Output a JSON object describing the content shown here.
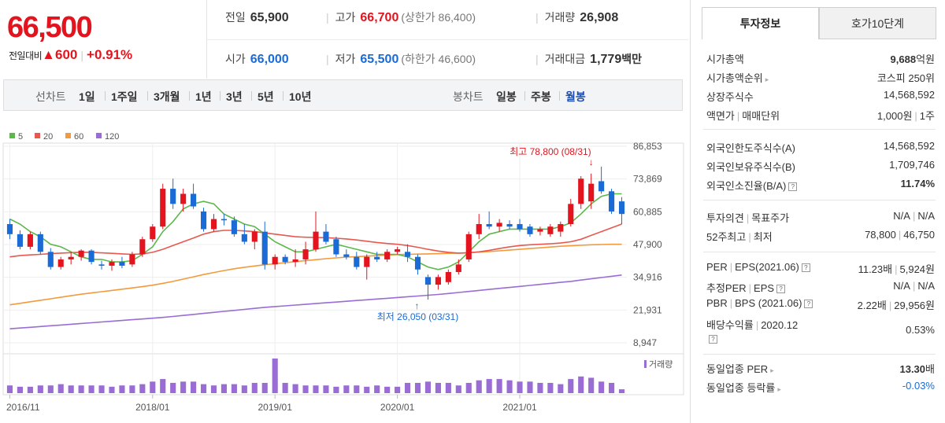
{
  "header": {
    "price": "66,500",
    "change_label": "전일대비",
    "change_arrow": "▲",
    "change_value": "600",
    "change_pct": "+0.91%",
    "stats": {
      "prev_close_label": "전일",
      "prev_close": "65,900",
      "high_label": "고가",
      "high": "66,700",
      "upper_limit": "(상한가 86,400)",
      "volume_label": "거래량",
      "volume": "26,908",
      "open_label": "시가",
      "open": "66,000",
      "low_label": "저가",
      "low": "65,500",
      "lower_limit": "(하한가 46,600)",
      "amount_label": "거래대금",
      "amount": "1,779",
      "amount_unit": "백만"
    }
  },
  "toolbar": {
    "line_chart": "선차트",
    "periods": [
      "1일",
      "1주일",
      "3개월",
      "1년",
      "3년",
      "5년",
      "10년"
    ],
    "candle_chart": "봉차트",
    "candle_periods": [
      "일봉",
      "주봉",
      "월봉"
    ],
    "active_candle": "월봉"
  },
  "colors": {
    "up": "#e4141e",
    "down": "#1a6bd6",
    "ma5": "#5cb84a",
    "ma20": "#e8584f",
    "ma60": "#f39a3c",
    "ma120": "#9a6dd4",
    "volume": "#9a6dd4"
  },
  "chart_data": {
    "type": "candlestick",
    "legend": [
      {
        "name": "5",
        "color": "#5cb84a"
      },
      {
        "name": "20",
        "color": "#e8584f"
      },
      {
        "name": "60",
        "color": "#f39a3c"
      },
      {
        "name": "120",
        "color": "#9a6dd4"
      }
    ],
    "y_ticks": [
      "86,853",
      "73,869",
      "60,885",
      "47,900",
      "34,916",
      "21,931",
      "8,947"
    ],
    "y_tick_values": [
      86853,
      73869,
      60885,
      47900,
      34916,
      21931,
      8947
    ],
    "x_ticks": [
      "2016/11",
      "2018/01",
      "2019/01",
      "2020/01",
      "2021/01"
    ],
    "x_tick_index": [
      0,
      14,
      26,
      38,
      50
    ],
    "volume_label": "거래량",
    "annotations": {
      "high": {
        "text": "최고 78,800 (08/31)",
        "index": 57,
        "value": 78800
      },
      "low": {
        "text": "최저 26,050 (03/31)",
        "index": 40,
        "value": 26050
      }
    },
    "candles": [
      [
        56000,
        58000,
        50000,
        52000
      ],
      [
        52000,
        53500,
        46000,
        47000
      ],
      [
        47000,
        53000,
        46000,
        52000
      ],
      [
        52000,
        53000,
        44000,
        45000
      ],
      [
        45000,
        46500,
        38000,
        39000
      ],
      [
        39000,
        43000,
        38000,
        42000
      ],
      [
        42000,
        45000,
        40000,
        43000
      ],
      [
        43000,
        46000,
        41500,
        45500
      ],
      [
        45500,
        46000,
        40000,
        41000
      ],
      [
        40000,
        41500,
        38000,
        39500
      ],
      [
        39500,
        42000,
        37500,
        41000
      ],
      [
        41000,
        43000,
        38500,
        39500
      ],
      [
        40000,
        45000,
        39000,
        44000
      ],
      [
        44000,
        51000,
        43000,
        50000
      ],
      [
        50000,
        56000,
        49000,
        55000
      ],
      [
        55000,
        72000,
        54000,
        70000
      ],
      [
        70000,
        74000,
        62000,
        64000
      ],
      [
        64000,
        70000,
        61000,
        68000
      ],
      [
        68000,
        72000,
        62000,
        63000
      ],
      [
        61000,
        62500,
        53000,
        54000
      ],
      [
        54000,
        60000,
        53000,
        58000
      ],
      [
        58000,
        60000,
        55500,
        57500
      ],
      [
        57500,
        59000,
        51000,
        52000
      ],
      [
        52000,
        56000,
        48000,
        49000
      ],
      [
        49000,
        54000,
        46000,
        53000
      ],
      [
        53000,
        57000,
        38000,
        40000
      ],
      [
        40000,
        44000,
        38000,
        43000
      ],
      [
        43000,
        44000,
        40000,
        41000
      ],
      [
        41000,
        46000,
        39000,
        42000
      ],
      [
        42000,
        49000,
        40000,
        46000
      ],
      [
        46000,
        61000,
        45000,
        53000
      ],
      [
        53000,
        56000,
        48000,
        49000
      ],
      [
        50000,
        51000,
        43000,
        44000
      ],
      [
        44000,
        46000,
        42000,
        43000
      ],
      [
        43000,
        45000,
        38000,
        39000
      ],
      [
        39000,
        44000,
        34000,
        43000
      ],
      [
        43000,
        45000,
        41000,
        42000
      ],
      [
        42000,
        46000,
        41000,
        45000
      ],
      [
        45000,
        47000,
        44000,
        46000
      ],
      [
        45000,
        48000,
        41000,
        43000
      ],
      [
        43000,
        44000,
        36000,
        38000
      ],
      [
        35000,
        36000,
        26050,
        32000
      ],
      [
        32000,
        36000,
        30000,
        35000
      ],
      [
        33000,
        38000,
        32000,
        37000
      ],
      [
        37000,
        42000,
        36000,
        40000
      ],
      [
        42000,
        53000,
        41000,
        52000
      ],
      [
        52000,
        60000,
        50000,
        56000
      ],
      [
        56000,
        61000,
        54000,
        55000
      ],
      [
        55000,
        58000,
        53000,
        56500
      ],
      [
        56000,
        57500,
        54000,
        55000
      ],
      [
        56000,
        58000,
        53000,
        54000
      ],
      [
        55000,
        56000,
        51000,
        52000
      ],
      [
        53000,
        55000,
        51500,
        54000
      ],
      [
        52000,
        56000,
        51000,
        55000
      ],
      [
        53000,
        57000,
        51000,
        56000
      ],
      [
        56000,
        66000,
        55000,
        64000
      ],
      [
        64000,
        75000,
        62000,
        74000
      ],
      [
        65000,
        76000,
        62000,
        72000
      ],
      [
        73000,
        78800,
        68000,
        69000
      ],
      [
        69000,
        70000,
        60000,
        61000
      ],
      [
        65000,
        66700,
        56000,
        60000
      ]
    ],
    "ma5": [
      58000,
      56000,
      53000,
      51000,
      48000,
      47000,
      45000,
      43000,
      42000,
      42000,
      41000,
      41000,
      41500,
      44000,
      47000,
      53000,
      57000,
      62000,
      64000,
      65000,
      64000,
      60000,
      58000,
      56000,
      55000,
      52000,
      49000,
      47000,
      45000,
      45000,
      46000,
      47000,
      48000,
      47000,
      46000,
      45000,
      44000,
      44000,
      44000,
      43000,
      41000,
      39000,
      38000,
      39000,
      41000,
      45000,
      49000,
      52000,
      53000,
      54000,
      54000,
      54000,
      54000,
      54000,
      55000,
      56500,
      60000,
      64000,
      67000,
      68000,
      68000
    ],
    "ma20": [
      43000,
      43500,
      43800,
      44000,
      44300,
      44500,
      44700,
      44800,
      44800,
      44600,
      44400,
      44200,
      44000,
      44200,
      44800,
      46000,
      47500,
      49000,
      50500,
      52000,
      53000,
      53500,
      53500,
      53300,
      53000,
      52500,
      52000,
      51500,
      51000,
      50800,
      50700,
      50600,
      50400,
      50100,
      49700,
      49200,
      48700,
      48300,
      48000,
      47500,
      46800,
      46000,
      45300,
      44800,
      44500,
      44600,
      45000,
      45600,
      46300,
      47000,
      47500,
      47800,
      48000,
      48200,
      48500,
      49000,
      50000,
      51500,
      53000,
      54500,
      56000
    ],
    "ma60": [
      24000,
      24600,
      25200,
      25800,
      26400,
      27000,
      27600,
      28200,
      28700,
      29200,
      29700,
      30200,
      30700,
      31200,
      31800,
      32500,
      33300,
      34200,
      35100,
      36000,
      36800,
      37600,
      38300,
      38900,
      39400,
      39900,
      40300,
      40700,
      41100,
      41500,
      41900,
      42300,
      42600,
      42900,
      43100,
      43300,
      43500,
      43700,
      43900,
      44000,
      44100,
      44200,
      44300,
      44400,
      44500,
      44700,
      44900,
      45100,
      45400,
      45700,
      46000,
      46300,
      46600,
      46900,
      47200,
      47400,
      47600,
      47800,
      47900,
      48000,
      48000
    ],
    "ma120": [
      14500,
      14800,
      15100,
      15400,
      15700,
      16000,
      16300,
      16600,
      16900,
      17200,
      17500,
      17800,
      18100,
      18400,
      18700,
      19000,
      19400,
      19800,
      20200,
      20600,
      21000,
      21400,
      21800,
      22200,
      22600,
      23000,
      23300,
      23600,
      23900,
      24200,
      24500,
      24800,
      25100,
      25400,
      25700,
      26000,
      26300,
      26600,
      26900,
      27200,
      27500,
      27800,
      28100,
      28500,
      28900,
      29300,
      29700,
      30100,
      30500,
      30900,
      31300,
      31700,
      32100,
      32500,
      32900,
      33300,
      33800,
      34300,
      34800,
      35300,
      35800
    ],
    "volume": [
      6,
      5,
      5,
      6,
      6,
      7,
      6,
      6,
      6,
      6,
      5,
      6,
      6,
      7,
      9,
      11,
      8,
      9,
      9,
      7,
      6,
      7,
      7,
      6,
      8,
      8,
      27,
      8,
      7,
      6,
      6,
      6,
      5,
      6,
      6,
      5,
      6,
      5,
      5,
      8,
      8,
      9,
      8,
      8,
      6,
      8,
      10,
      11,
      11,
      10,
      9,
      9,
      8,
      8,
      7,
      11,
      13,
      12,
      9,
      8,
      3
    ]
  },
  "panel": {
    "tab_active": "투자정보",
    "tab_other": "호가10단계",
    "rows": {
      "mcap_label": "시가총액",
      "mcap_value": "9,688",
      "mcap_unit": "억원",
      "mcap_rank_label": "시가총액순위",
      "mcap_rank_value": "코스피 250위",
      "shares_label": "상장주식수",
      "shares_value": "14,568,592",
      "face_label": "액면가",
      "unit_label": "매매단위",
      "face_value": "1,000원",
      "unit_value": "1주",
      "foreign_limit_label": "외국인한도주식수(A)",
      "foreign_limit_value": "14,568,592",
      "foreign_hold_label": "외국인보유주식수(B)",
      "foreign_hold_value": "1,709,746",
      "foreign_ratio_label": "외국인소진율(B/A)",
      "foreign_ratio_value": "11.74%",
      "opinion_label": "투자의견",
      "target_label": "목표주가",
      "opinion_value": "N/A",
      "target_value": "N/A",
      "w52_high_label": "52주최고",
      "w52_low_label": "최저",
      "w52_high_value": "78,800",
      "w52_low_value": "46,750",
      "per_label": "PER",
      "eps_label": "EPS(2021.06)",
      "per_value": "11.23배",
      "eps_value": "5,924원",
      "eper_label": "추정PER",
      "eeps_label": "EPS",
      "eper_value": "N/A",
      "eeps_value": "N/A",
      "pbr_label": "PBR",
      "bps_label": "BPS (2021.06)",
      "pbr_value": "2.22배",
      "bps_value": "29,956원",
      "div_label": "배당수익률",
      "div_date": "2020.12",
      "div_value": "0.53%",
      "ind_per_label": "동일업종 PER",
      "ind_per_value": "13.30",
      "ind_per_unit": "배",
      "ind_chg_label": "동일업종 등락률",
      "ind_chg_value": "-0.03%"
    }
  }
}
